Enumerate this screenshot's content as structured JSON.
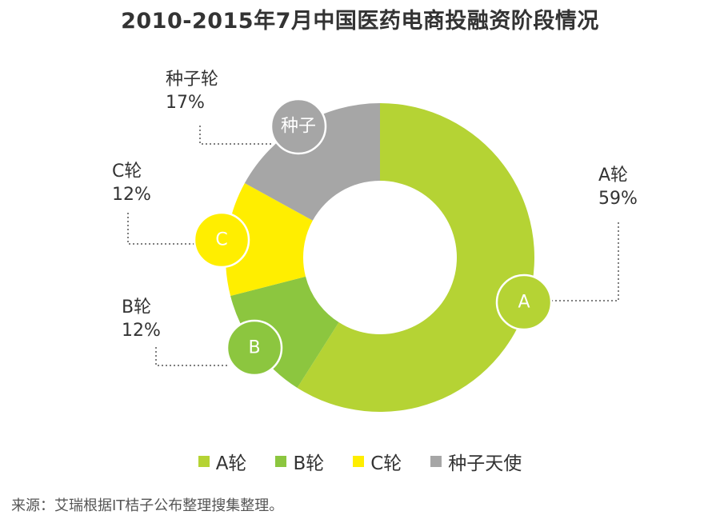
{
  "chart_data": {
    "type": "donut",
    "title": "2010-2015年7月中国医药电商投融资阶段情况",
    "slices": [
      {
        "name": "A轮",
        "value": 59,
        "value_label": "59%",
        "badge": "A",
        "color": "#b5d334"
      },
      {
        "name": "B轮",
        "value": 12,
        "value_label": "12%",
        "badge": "B",
        "color": "#8cc63f"
      },
      {
        "name": "C轮",
        "value": 12,
        "value_label": "12%",
        "badge": "C",
        "color": "#ffee00"
      },
      {
        "name": "种子轮",
        "value": 17,
        "value_label": "17%",
        "badge": "种子",
        "color": "#a6a6a6"
      }
    ],
    "legend": [
      {
        "label": "A轮",
        "color": "#b5d334"
      },
      {
        "label": "B轮",
        "color": "#8cc63f"
      },
      {
        "label": "C轮",
        "color": "#ffee00"
      },
      {
        "label": "种子天使",
        "color": "#a6a6a6"
      }
    ]
  },
  "source": "来源：艾瑞根据IT桔子公布整理搜集整理。"
}
